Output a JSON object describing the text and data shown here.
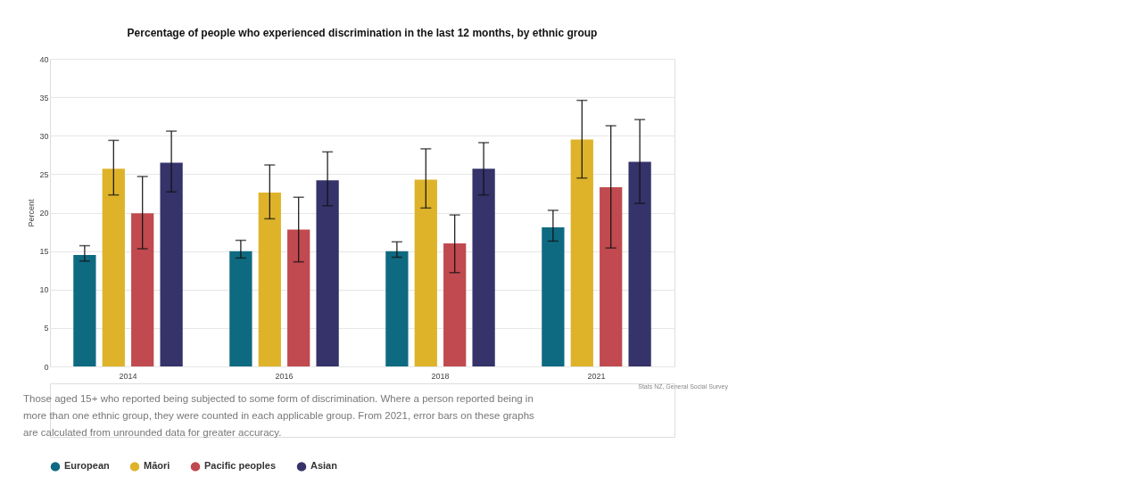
{
  "chart_data": {
    "type": "bar",
    "title": "Percentage of people who experienced discrimination in the last 12 months, by ethnic group",
    "ylabel": "Percent",
    "categories": [
      "2014",
      "2016",
      "2018",
      "2021"
    ],
    "series": [
      {
        "name": "European",
        "color": "#0e6a80",
        "values": [
          14.5,
          15.0,
          15.0,
          18.1
        ],
        "errors": [
          [
            13.7,
            15.7
          ],
          [
            14.1,
            16.4
          ],
          [
            14.2,
            16.2
          ],
          [
            16.3,
            20.3
          ]
        ]
      },
      {
        "name": "Māori",
        "color": "#deb32a",
        "values": [
          25.7,
          22.6,
          24.3,
          29.5
        ],
        "errors": [
          [
            22.3,
            29.4
          ],
          [
            19.2,
            26.2
          ],
          [
            20.6,
            28.3
          ],
          [
            24.5,
            34.6
          ]
        ]
      },
      {
        "name": "Pacific peoples",
        "color": "#c04a4f",
        "values": [
          19.9,
          17.8,
          16.0,
          23.3
        ],
        "errors": [
          [
            15.3,
            24.7
          ],
          [
            13.6,
            22.0
          ],
          [
            12.2,
            19.7
          ],
          [
            15.4,
            31.3
          ]
        ]
      },
      {
        "name": "Asian",
        "color": "#35336a",
        "values": [
          26.5,
          24.2,
          25.7,
          26.6
        ],
        "errors": [
          [
            22.7,
            30.6
          ],
          [
            20.9,
            27.9
          ],
          [
            22.3,
            29.1
          ],
          [
            21.2,
            32.1
          ]
        ]
      }
    ],
    "ylim": [
      0,
      40
    ],
    "yticks": [
      0,
      5,
      10,
      15,
      20,
      25,
      30,
      35,
      40
    ],
    "grid": "y",
    "legend": "bottom",
    "annotations": [
      "Stats NZ, General Social Survey",
      "Those aged 15+ who reported being subjected to some form of discrimination. Where a person reported being in more than one ethnic group, they were counted in each applicable group. From 2021, error bars on these graphs are calculated from unrounded data for greater accuracy."
    ]
  }
}
